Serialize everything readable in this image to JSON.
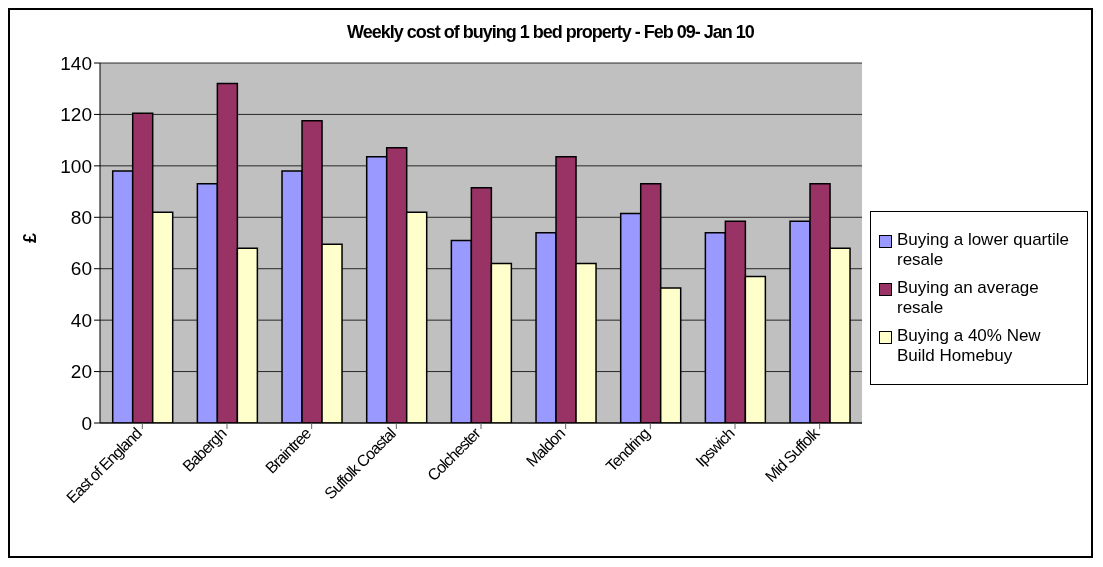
{
  "chart_data": {
    "type": "bar",
    "title": "Weekly cost of buying 1 bed property - Feb 09- Jan 10",
    "ylabel": "£",
    "categories": [
      "East of England",
      "Babergh",
      "Braintree",
      "Suffolk Coastal",
      "Colchester",
      "Maldon",
      "Tendring",
      "Ipswich",
      "Mid Suffolk"
    ],
    "series": [
      {
        "name": "Buying a lower quartile resale",
        "color": "#9999ff",
        "values": [
          98,
          93,
          98,
          103.5,
          71,
          74,
          81.5,
          74,
          78.5
        ]
      },
      {
        "name": "Buying an average resale",
        "color": "#993366",
        "values": [
          120.5,
          132,
          117.5,
          107,
          91.5,
          103.5,
          93,
          78.5,
          93
        ]
      },
      {
        "name": "Buying a 40% New Build Homebuy",
        "color": "#ffffcc",
        "values": [
          82,
          68,
          69.5,
          82,
          62,
          62,
          52.5,
          57,
          68
        ]
      }
    ],
    "ylim": [
      0,
      140
    ],
    "yticks": [
      0,
      20,
      40,
      60,
      80,
      100,
      120,
      140
    ],
    "grid": "y",
    "legend": "right"
  }
}
